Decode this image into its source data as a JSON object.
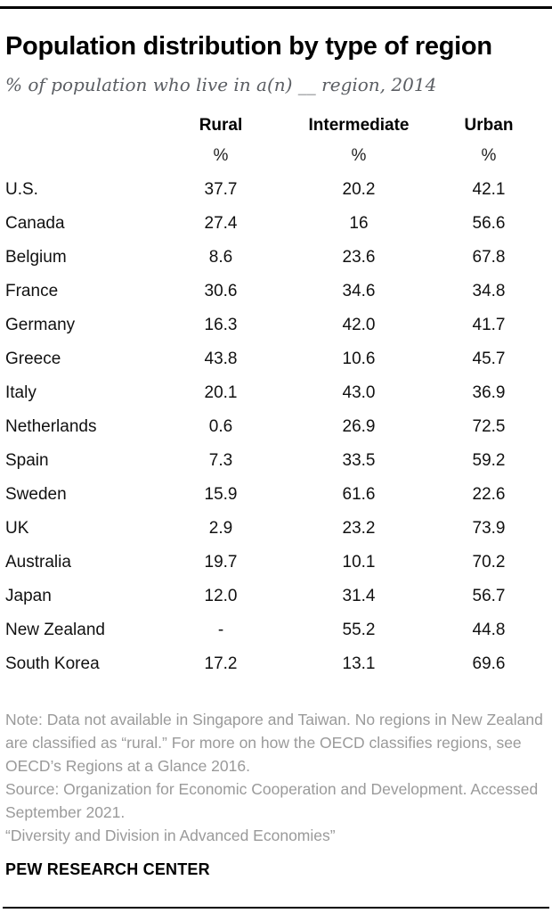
{
  "colors": {
    "title_text": "#000000",
    "subtitle_text": "#5b5e63",
    "body_text": "#111111",
    "note_text": "#9a9a9a",
    "rule": "#000000"
  },
  "header": {
    "title": "Population distribution by type of region",
    "subtitle": "% of population who live in a(n) __ region, 2014"
  },
  "table": {
    "columns": [
      "Rural",
      "Intermediate",
      "Urban"
    ],
    "unit": "%",
    "rows": [
      {
        "country": "U.S.",
        "rural": "37.7",
        "intermediate": "20.2",
        "urban": "42.1"
      },
      {
        "country": "Canada",
        "rural": "27.4",
        "intermediate": "16",
        "urban": "56.6"
      },
      {
        "country": "Belgium",
        "rural": "8.6",
        "intermediate": "23.6",
        "urban": "67.8"
      },
      {
        "country": "France",
        "rural": "30.6",
        "intermediate": "34.6",
        "urban": "34.8"
      },
      {
        "country": "Germany",
        "rural": "16.3",
        "intermediate": "42.0",
        "urban": "41.7"
      },
      {
        "country": "Greece",
        "rural": "43.8",
        "intermediate": "10.6",
        "urban": "45.7"
      },
      {
        "country": "Italy",
        "rural": "20.1",
        "intermediate": "43.0",
        "urban": "36.9"
      },
      {
        "country": "Netherlands",
        "rural": "0.6",
        "intermediate": "26.9",
        "urban": "72.5"
      },
      {
        "country": "Spain",
        "rural": "7.3",
        "intermediate": "33.5",
        "urban": "59.2"
      },
      {
        "country": "Sweden",
        "rural": "15.9",
        "intermediate": "61.6",
        "urban": "22.6"
      },
      {
        "country": "UK",
        "rural": "2.9",
        "intermediate": "23.2",
        "urban": "73.9"
      },
      {
        "country": "Australia",
        "rural": "19.7",
        "intermediate": "10.1",
        "urban": "70.2"
      },
      {
        "country": "Japan",
        "rural": "12.0",
        "intermediate": "31.4",
        "urban": "56.7"
      },
      {
        "country": "New Zealand",
        "rural": "-",
        "intermediate": "55.2",
        "urban": "44.8"
      },
      {
        "country": "South Korea",
        "rural": "17.2",
        "intermediate": "13.1",
        "urban": "69.6"
      }
    ]
  },
  "chart_data": {
    "type": "table",
    "title": "Population distribution by type of region",
    "subtitle": "% of population who live in a(n) __ region, 2014",
    "unit": "% of population",
    "categories": [
      "U.S.",
      "Canada",
      "Belgium",
      "France",
      "Germany",
      "Greece",
      "Italy",
      "Netherlands",
      "Spain",
      "Sweden",
      "UK",
      "Australia",
      "Japan",
      "New Zealand",
      "South Korea"
    ],
    "series": [
      {
        "name": "Rural",
        "values": [
          37.7,
          27.4,
          8.6,
          30.6,
          16.3,
          43.8,
          20.1,
          0.6,
          7.3,
          15.9,
          2.9,
          19.7,
          12.0,
          null,
          17.2
        ]
      },
      {
        "name": "Intermediate",
        "values": [
          20.2,
          16,
          23.6,
          34.6,
          42.0,
          10.6,
          43.0,
          26.9,
          33.5,
          61.6,
          23.2,
          10.1,
          31.4,
          55.2,
          13.1
        ]
      },
      {
        "name": "Urban",
        "values": [
          42.1,
          56.6,
          67.8,
          34.8,
          41.7,
          45.7,
          36.9,
          72.5,
          59.2,
          22.6,
          73.9,
          70.2,
          56.7,
          44.8,
          69.6
        ]
      }
    ]
  },
  "footer": {
    "note": "Note: Data not available in Singapore and Taiwan. No regions in New Zealand are classified as “rural.” For more on how the OECD classifies regions, see OECD’s Regions at a Glance 2016.",
    "source": "Source: Organization for Economic Cooperation and Development. Accessed September 2021.",
    "report": "“Diversity and Division in Advanced Economies”",
    "brand": "PEW RESEARCH CENTER"
  }
}
